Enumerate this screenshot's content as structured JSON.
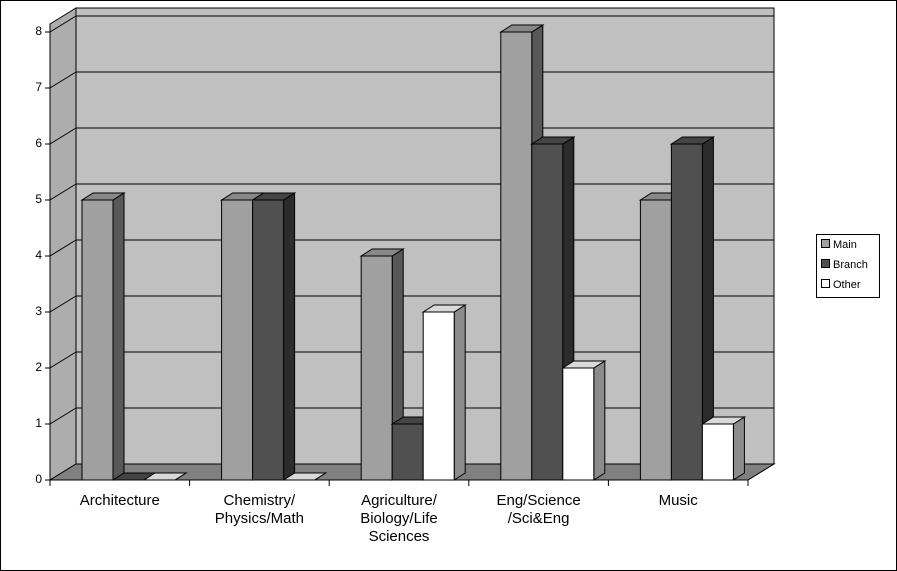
{
  "chart_data": {
    "type": "bar",
    "style": "3d-clustered-column",
    "categories": [
      [
        "Architecture"
      ],
      [
        "Chemistry/",
        "Physics/Math"
      ],
      [
        "Agriculture/",
        "Biology/Life",
        "Sciences"
      ],
      [
        "Eng/Science",
        "/Sci&Eng"
      ],
      [
        "Music"
      ]
    ],
    "series": [
      {
        "name": "Main",
        "values": [
          5,
          5,
          4,
          8,
          5
        ],
        "color": "#a0a0a0"
      },
      {
        "name": "Branch",
        "values": [
          0,
          5,
          1,
          6,
          6
        ],
        "color": "#505050"
      },
      {
        "name": "Other",
        "values": [
          0,
          0,
          3,
          2,
          1
        ],
        "color": "#ffffff"
      }
    ],
    "y_ticks": [
      "0",
      "1",
      "2",
      "3",
      "4",
      "5",
      "6",
      "7",
      "8"
    ],
    "ylim": [
      0,
      8
    ],
    "grid": true,
    "legend_position": "right",
    "wall_color": "#c0c0c0",
    "floor_color": "#808080"
  }
}
